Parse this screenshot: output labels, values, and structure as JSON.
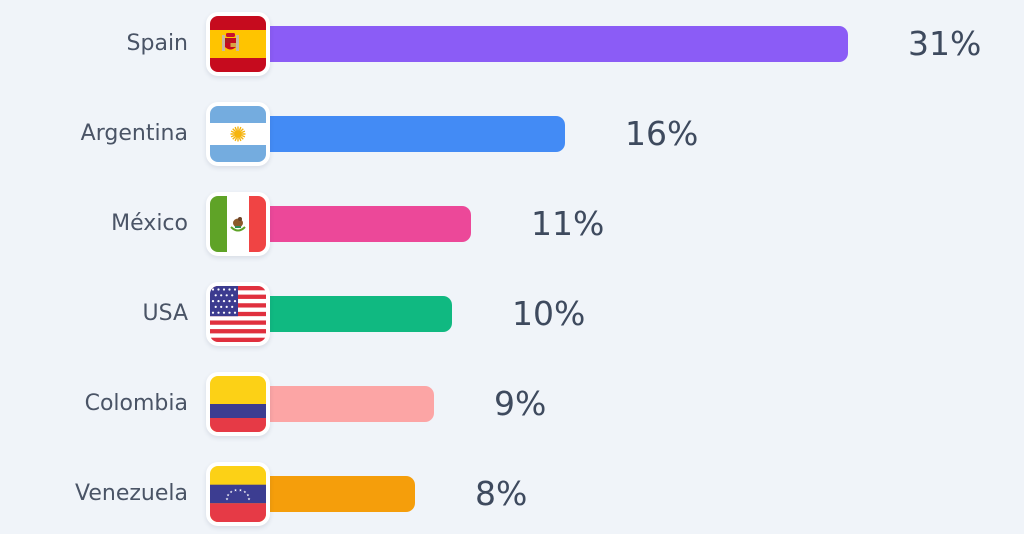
{
  "chart_data": {
    "type": "bar",
    "orientation": "horizontal",
    "categories": [
      "Spain",
      "Argentina",
      "México",
      "USA",
      "Colombia",
      "Venezuela"
    ],
    "values": [
      31,
      16,
      11,
      10,
      9,
      8
    ],
    "value_labels": [
      "31%",
      "16%",
      "11%",
      "10%",
      "9%",
      "8%"
    ],
    "unit": "%",
    "bar_colors": [
      "#8b5cf6",
      "#438bf5",
      "#ec4899",
      "#10b981",
      "#fca5a5",
      "#f59e0b"
    ],
    "flag_icons": [
      "spain-flag-icon",
      "argentina-flag-icon",
      "mexico-flag-icon",
      "usa-flag-icon",
      "colombia-flag-icon",
      "venezuela-flag-icon"
    ],
    "xlim": [
      0,
      31
    ],
    "grid": false,
    "legend": "none"
  },
  "colors": {
    "background": "#f0f4f9",
    "label_text": "#4a5466",
    "value_text": "#3e4a5e"
  }
}
